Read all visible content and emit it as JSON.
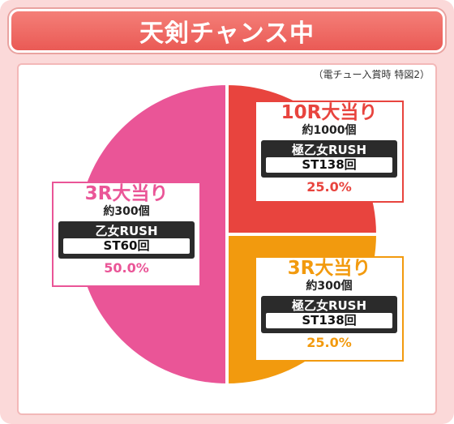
{
  "header": {
    "title": "天剣チャンス中"
  },
  "note": "（電チュー入賞時 特図2）",
  "chart_data": {
    "type": "pie",
    "title": "天剣チャンス中",
    "subtitle": "（電チュー入賞時 特図2）",
    "slices": [
      {
        "label": "10R大当り",
        "amount": "約1000個",
        "rush": "極乙女RUSH",
        "st": "ST138回",
        "value": 25.0,
        "percent_label": "25.0%",
        "color": "#e8443e"
      },
      {
        "label": "3R大当り",
        "amount": "約300個",
        "rush": "極乙女RUSH",
        "st": "ST138回",
        "value": 25.0,
        "percent_label": "25.0%",
        "color": "#f29a0e"
      },
      {
        "label": "3R大当り",
        "amount": "約300個",
        "rush": "乙女RUSH",
        "st": "ST60回",
        "value": 50.0,
        "percent_label": "50.0%",
        "color": "#ea5597"
      }
    ]
  }
}
